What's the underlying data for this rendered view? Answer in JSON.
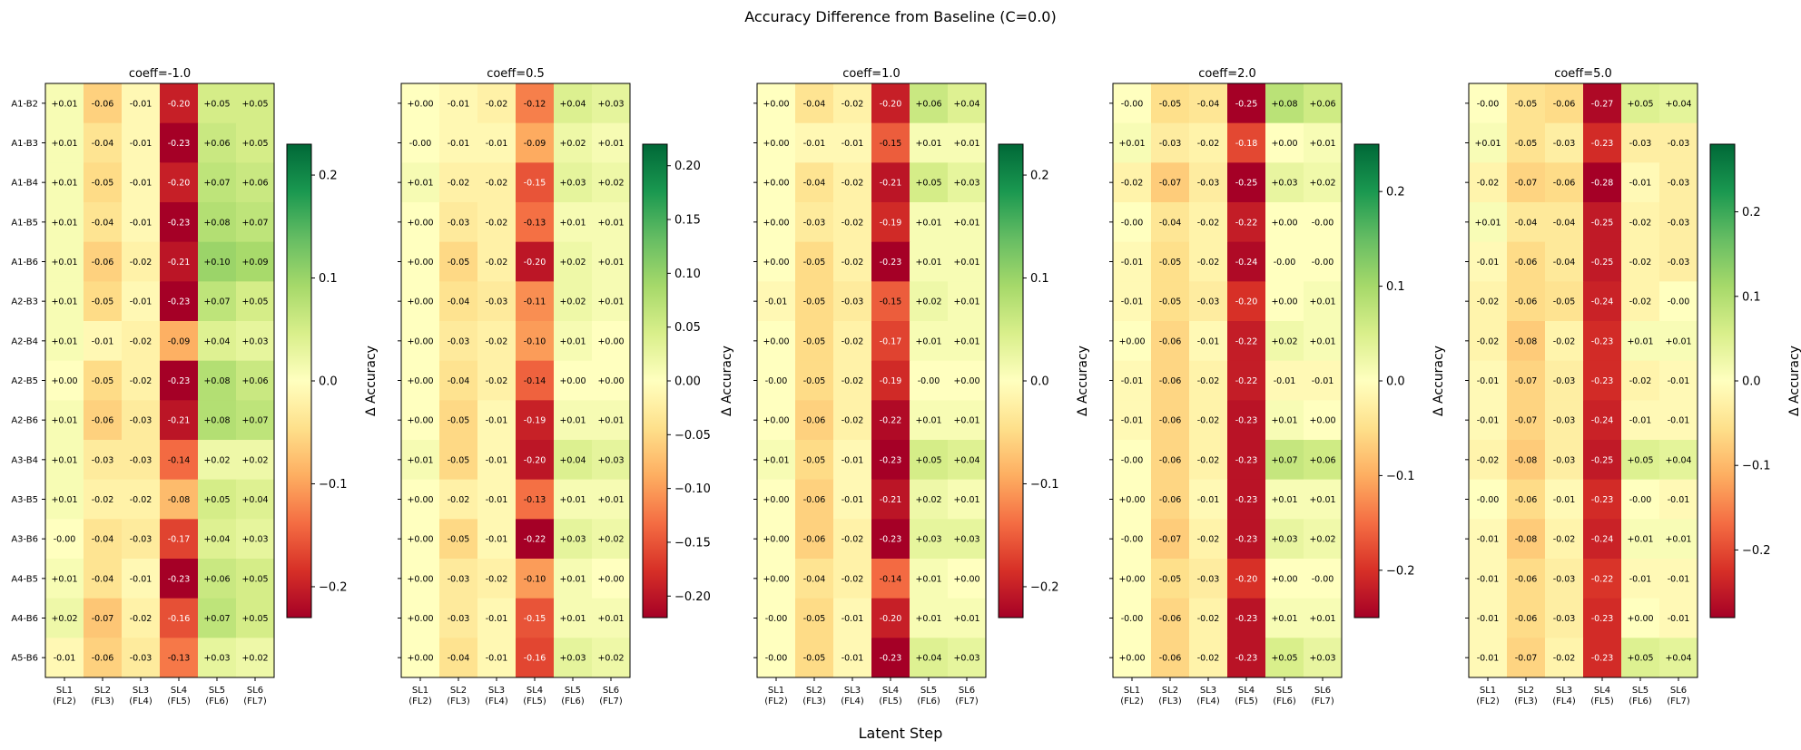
{
  "figure": {
    "title": "Accuracy Difference from Baseline (C=0.0)",
    "xlabel": "Latent Step"
  },
  "colormap": {
    "name": "RdYlGn",
    "stops": [
      "#a50026",
      "#d73027",
      "#f46d43",
      "#fdae61",
      "#fee08b",
      "#ffffbf",
      "#d9ef8b",
      "#a6d96a",
      "#66bd63",
      "#1a9850",
      "#006837"
    ]
  },
  "chart_data": [
    {
      "type": "heatmap",
      "title": "coeff=-1.0",
      "colorbar_label": "Δ Accuracy",
      "vmin": -0.23,
      "vmax": 0.23,
      "colorbar_ticks": [
        "0.2",
        "0.1",
        "0.0",
        "−0.1",
        "−0.2"
      ],
      "colorbar_tick_values": [
        0.2,
        0.1,
        0.0,
        -0.1,
        -0.2
      ],
      "columns": [
        "SL1\n(FL2)",
        "SL2\n(FL3)",
        "SL3\n(FL4)",
        "SL4\n(FL5)",
        "SL5\n(FL6)",
        "SL6\n(FL7)"
      ],
      "rows": [
        "A1-B2",
        "A1-B3",
        "A1-B4",
        "A1-B5",
        "A1-B6",
        "A2-B3",
        "A2-B4",
        "A2-B5",
        "A2-B6",
        "A3-B4",
        "A3-B5",
        "A3-B6",
        "A4-B5",
        "A4-B6",
        "A5-B6"
      ],
      "labels": [
        [
          "+0.01",
          "-0.06",
          "-0.01",
          "-0.20",
          "+0.05",
          "+0.05"
        ],
        [
          "+0.01",
          "-0.04",
          "-0.01",
          "-0.23",
          "+0.06",
          "+0.05"
        ],
        [
          "+0.01",
          "-0.05",
          "-0.01",
          "-0.20",
          "+0.07",
          "+0.06"
        ],
        [
          "+0.01",
          "-0.04",
          "-0.01",
          "-0.23",
          "+0.08",
          "+0.07"
        ],
        [
          "+0.01",
          "-0.06",
          "-0.02",
          "-0.21",
          "+0.10",
          "+0.09"
        ],
        [
          "+0.01",
          "-0.05",
          "-0.01",
          "-0.23",
          "+0.07",
          "+0.05"
        ],
        [
          "+0.01",
          "-0.01",
          "-0.02",
          "-0.09",
          "+0.04",
          "+0.03"
        ],
        [
          "+0.00",
          "-0.05",
          "-0.02",
          "-0.23",
          "+0.08",
          "+0.06"
        ],
        [
          "+0.01",
          "-0.06",
          "-0.03",
          "-0.21",
          "+0.08",
          "+0.07"
        ],
        [
          "+0.01",
          "-0.03",
          "-0.03",
          "-0.14",
          "+0.02",
          "+0.02"
        ],
        [
          "+0.01",
          "-0.02",
          "-0.02",
          "-0.08",
          "+0.05",
          "+0.04"
        ],
        [
          "-0.00",
          "-0.04",
          "-0.03",
          "-0.17",
          "+0.04",
          "+0.03"
        ],
        [
          "+0.01",
          "-0.04",
          "-0.01",
          "-0.23",
          "+0.06",
          "+0.05"
        ],
        [
          "+0.02",
          "-0.07",
          "-0.02",
          "-0.16",
          "+0.07",
          "+0.05"
        ],
        [
          "-0.01",
          "-0.06",
          "-0.03",
          "-0.13",
          "+0.03",
          "+0.02"
        ]
      ]
    },
    {
      "type": "heatmap",
      "title": "coeff=0.5",
      "colorbar_label": "Δ Accuracy",
      "vmin": -0.22,
      "vmax": 0.22,
      "colorbar_ticks": [
        "0.20",
        "0.15",
        "0.10",
        "0.05",
        "0.00",
        "−0.05",
        "−0.10",
        "−0.15",
        "−0.20"
      ],
      "colorbar_tick_values": [
        0.2,
        0.15,
        0.1,
        0.05,
        0.0,
        -0.05,
        -0.1,
        -0.15,
        -0.2
      ],
      "columns": [
        "SL1\n(FL2)",
        "SL2\n(FL3)",
        "SL3\n(FL4)",
        "SL4\n(FL5)",
        "SL5\n(FL6)",
        "SL6\n(FL7)"
      ],
      "rows": [
        "A1-B2",
        "A1-B3",
        "A1-B4",
        "A1-B5",
        "A1-B6",
        "A2-B3",
        "A2-B4",
        "A2-B5",
        "A2-B6",
        "A3-B4",
        "A3-B5",
        "A3-B6",
        "A4-B5",
        "A4-B6",
        "A5-B6"
      ],
      "labels": [
        [
          "+0.00",
          "-0.01",
          "-0.02",
          "-0.12",
          "+0.04",
          "+0.03"
        ],
        [
          "-0.00",
          "-0.01",
          "-0.01",
          "-0.09",
          "+0.02",
          "+0.01"
        ],
        [
          "+0.01",
          "-0.02",
          "-0.02",
          "-0.15",
          "+0.03",
          "+0.02"
        ],
        [
          "+0.00",
          "-0.03",
          "-0.02",
          "-0.13",
          "+0.01",
          "+0.01"
        ],
        [
          "+0.00",
          "-0.05",
          "-0.02",
          "-0.20",
          "+0.02",
          "+0.01"
        ],
        [
          "+0.00",
          "-0.04",
          "-0.03",
          "-0.11",
          "+0.02",
          "+0.01"
        ],
        [
          "+0.00",
          "-0.03",
          "-0.02",
          "-0.10",
          "+0.01",
          "+0.00"
        ],
        [
          "+0.00",
          "-0.04",
          "-0.02",
          "-0.14",
          "+0.00",
          "+0.00"
        ],
        [
          "+0.00",
          "-0.05",
          "-0.01",
          "-0.19",
          "+0.01",
          "+0.01"
        ],
        [
          "+0.01",
          "-0.05",
          "-0.01",
          "-0.20",
          "+0.04",
          "+0.03"
        ],
        [
          "+0.00",
          "-0.02",
          "-0.01",
          "-0.13",
          "+0.01",
          "+0.01"
        ],
        [
          "+0.00",
          "-0.05",
          "-0.01",
          "-0.22",
          "+0.03",
          "+0.02"
        ],
        [
          "+0.00",
          "-0.03",
          "-0.02",
          "-0.10",
          "+0.01",
          "+0.00"
        ],
        [
          "+0.00",
          "-0.03",
          "-0.01",
          "-0.15",
          "+0.01",
          "+0.01"
        ],
        [
          "+0.00",
          "-0.04",
          "-0.01",
          "-0.16",
          "+0.03",
          "+0.02"
        ]
      ]
    },
    {
      "type": "heatmap",
      "title": "coeff=1.0",
      "colorbar_label": "Δ Accuracy",
      "vmin": -0.23,
      "vmax": 0.23,
      "colorbar_ticks": [
        "0.2",
        "0.1",
        "0.0",
        "−0.1",
        "−0.2"
      ],
      "colorbar_tick_values": [
        0.2,
        0.1,
        0.0,
        -0.1,
        -0.2
      ],
      "columns": [
        "SL1\n(FL2)",
        "SL2\n(FL3)",
        "SL3\n(FL4)",
        "SL4\n(FL5)",
        "SL5\n(FL6)",
        "SL6\n(FL7)"
      ],
      "rows": [
        "A1-B2",
        "A1-B3",
        "A1-B4",
        "A1-B5",
        "A1-B6",
        "A2-B3",
        "A2-B4",
        "A2-B5",
        "A2-B6",
        "A3-B4",
        "A3-B5",
        "A3-B6",
        "A4-B5",
        "A4-B6",
        "A5-B6"
      ],
      "labels": [
        [
          "+0.00",
          "-0.04",
          "-0.02",
          "-0.20",
          "+0.06",
          "+0.04"
        ],
        [
          "+0.00",
          "-0.01",
          "-0.01",
          "-0.15",
          "+0.01",
          "+0.01"
        ],
        [
          "+0.00",
          "-0.04",
          "-0.02",
          "-0.21",
          "+0.05",
          "+0.03"
        ],
        [
          "+0.00",
          "-0.03",
          "-0.02",
          "-0.19",
          "+0.01",
          "+0.01"
        ],
        [
          "+0.00",
          "-0.05",
          "-0.02",
          "-0.23",
          "+0.01",
          "+0.01"
        ],
        [
          "-0.01",
          "-0.05",
          "-0.03",
          "-0.15",
          "+0.02",
          "+0.01"
        ],
        [
          "+0.00",
          "-0.05",
          "-0.02",
          "-0.17",
          "+0.01",
          "+0.01"
        ],
        [
          "-0.00",
          "-0.05",
          "-0.02",
          "-0.19",
          "-0.00",
          "+0.00"
        ],
        [
          "+0.00",
          "-0.06",
          "-0.02",
          "-0.22",
          "+0.01",
          "+0.01"
        ],
        [
          "+0.01",
          "-0.05",
          "-0.01",
          "-0.23",
          "+0.05",
          "+0.04"
        ],
        [
          "+0.00",
          "-0.06",
          "-0.01",
          "-0.21",
          "+0.02",
          "+0.01"
        ],
        [
          "+0.00",
          "-0.06",
          "-0.02",
          "-0.23",
          "+0.03",
          "+0.03"
        ],
        [
          "+0.00",
          "-0.04",
          "-0.02",
          "-0.14",
          "+0.01",
          "+0.00"
        ],
        [
          "-0.00",
          "-0.05",
          "-0.01",
          "-0.20",
          "+0.01",
          "+0.01"
        ],
        [
          "-0.00",
          "-0.05",
          "-0.01",
          "-0.23",
          "+0.04",
          "+0.03"
        ]
      ]
    },
    {
      "type": "heatmap",
      "title": "coeff=2.0",
      "colorbar_label": "Δ Accuracy",
      "vmin": -0.25,
      "vmax": 0.25,
      "colorbar_ticks": [
        "0.2",
        "0.1",
        "0.0",
        "−0.1",
        "−0.2"
      ],
      "colorbar_tick_values": [
        0.2,
        0.1,
        0.0,
        -0.1,
        -0.2
      ],
      "columns": [
        "SL1\n(FL2)",
        "SL2\n(FL3)",
        "SL3\n(FL4)",
        "SL4\n(FL5)",
        "SL5\n(FL6)",
        "SL6\n(FL7)"
      ],
      "rows": [
        "A1-B2",
        "A1-B3",
        "A1-B4",
        "A1-B5",
        "A1-B6",
        "A2-B3",
        "A2-B4",
        "A2-B5",
        "A2-B6",
        "A3-B4",
        "A3-B5",
        "A3-B6",
        "A4-B5",
        "A4-B6",
        "A5-B6"
      ],
      "labels": [
        [
          "-0.00",
          "-0.05",
          "-0.04",
          "-0.25",
          "+0.08",
          "+0.06"
        ],
        [
          "+0.01",
          "-0.03",
          "-0.02",
          "-0.18",
          "+0.00",
          "+0.01"
        ],
        [
          "-0.02",
          "-0.07",
          "-0.03",
          "-0.25",
          "+0.03",
          "+0.02"
        ],
        [
          "-0.00",
          "-0.04",
          "-0.02",
          "-0.22",
          "+0.00",
          "-0.00"
        ],
        [
          "-0.01",
          "-0.05",
          "-0.02",
          "-0.24",
          "-0.00",
          "-0.00"
        ],
        [
          "-0.01",
          "-0.05",
          "-0.03",
          "-0.20",
          "+0.00",
          "+0.01"
        ],
        [
          "+0.00",
          "-0.06",
          "-0.01",
          "-0.22",
          "+0.02",
          "+0.01"
        ],
        [
          "-0.01",
          "-0.06",
          "-0.02",
          "-0.22",
          "-0.01",
          "-0.01"
        ],
        [
          "-0.01",
          "-0.06",
          "-0.02",
          "-0.23",
          "+0.01",
          "+0.00"
        ],
        [
          "-0.00",
          "-0.06",
          "-0.02",
          "-0.23",
          "+0.07",
          "+0.06"
        ],
        [
          "+0.00",
          "-0.06",
          "-0.01",
          "-0.23",
          "+0.01",
          "+0.01"
        ],
        [
          "-0.00",
          "-0.07",
          "-0.02",
          "-0.23",
          "+0.03",
          "+0.02"
        ],
        [
          "+0.00",
          "-0.05",
          "-0.03",
          "-0.20",
          "+0.00",
          "-0.00"
        ],
        [
          "-0.00",
          "-0.06",
          "-0.02",
          "-0.23",
          "+0.01",
          "+0.01"
        ],
        [
          "+0.00",
          "-0.06",
          "-0.02",
          "-0.23",
          "+0.05",
          "+0.03"
        ]
      ]
    },
    {
      "type": "heatmap",
      "title": "coeff=5.0",
      "colorbar_label": "Δ Accuracy",
      "vmin": -0.28,
      "vmax": 0.28,
      "colorbar_ticks": [
        "0.2",
        "0.1",
        "0.0",
        "−0.1",
        "−0.2"
      ],
      "colorbar_tick_values": [
        0.2,
        0.1,
        0.0,
        -0.1,
        -0.2
      ],
      "columns": [
        "SL1\n(FL2)",
        "SL2\n(FL3)",
        "SL3\n(FL4)",
        "SL4\n(FL5)",
        "SL5\n(FL6)",
        "SL6\n(FL7)"
      ],
      "rows": [
        "A1-B2",
        "A1-B3",
        "A1-B4",
        "A1-B5",
        "A1-B6",
        "A2-B3",
        "A2-B4",
        "A2-B5",
        "A2-B6",
        "A3-B4",
        "A3-B5",
        "A3-B6",
        "A4-B5",
        "A4-B6",
        "A5-B6"
      ],
      "labels": [
        [
          "-0.00",
          "-0.05",
          "-0.06",
          "-0.27",
          "+0.05",
          "+0.04"
        ],
        [
          "+0.01",
          "-0.05",
          "-0.03",
          "-0.23",
          "-0.03",
          "-0.03"
        ],
        [
          "-0.02",
          "-0.07",
          "-0.06",
          "-0.28",
          "-0.01",
          "-0.03"
        ],
        [
          "+0.01",
          "-0.04",
          "-0.04",
          "-0.25",
          "-0.02",
          "-0.03"
        ],
        [
          "-0.01",
          "-0.06",
          "-0.04",
          "-0.25",
          "-0.02",
          "-0.03"
        ],
        [
          "-0.02",
          "-0.06",
          "-0.05",
          "-0.24",
          "-0.02",
          "-0.00"
        ],
        [
          "-0.02",
          "-0.08",
          "-0.02",
          "-0.23",
          "+0.01",
          "+0.01"
        ],
        [
          "-0.01",
          "-0.07",
          "-0.03",
          "-0.23",
          "-0.02",
          "-0.01"
        ],
        [
          "-0.01",
          "-0.07",
          "-0.03",
          "-0.24",
          "-0.01",
          "-0.01"
        ],
        [
          "-0.02",
          "-0.08",
          "-0.03",
          "-0.25",
          "+0.05",
          "+0.04"
        ],
        [
          "-0.00",
          "-0.06",
          "-0.01",
          "-0.23",
          "-0.00",
          "-0.01"
        ],
        [
          "-0.01",
          "-0.08",
          "-0.02",
          "-0.24",
          "+0.01",
          "+0.01"
        ],
        [
          "-0.01",
          "-0.06",
          "-0.03",
          "-0.22",
          "-0.01",
          "-0.01"
        ],
        [
          "-0.01",
          "-0.06",
          "-0.03",
          "-0.23",
          "+0.00",
          "-0.01"
        ],
        [
          "-0.01",
          "-0.07",
          "-0.02",
          "-0.23",
          "+0.05",
          "+0.04"
        ]
      ]
    }
  ]
}
